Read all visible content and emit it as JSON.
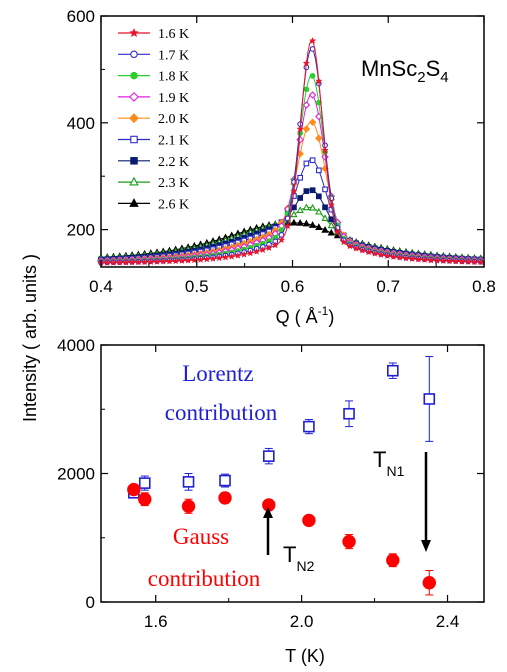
{
  "chart_data": [
    {
      "type": "line",
      "title": "MnSc2S4",
      "title_main": "MnSc",
      "title_sub1": "2",
      "title_mid": "S",
      "title_sub2": "4",
      "xlabel": "Q ( Å",
      "xlabel_sup": "-1",
      "xlabel_end": ")",
      "xlim": [
        0.4,
        0.8
      ],
      "ylim": [
        130,
        600
      ],
      "xticks": [
        "0.4",
        "0.5",
        "0.6",
        "0.7",
        "0.8"
      ],
      "yticks": [
        "200",
        "400",
        "600"
      ],
      "legend_position": "top-left",
      "series": [
        {
          "name": "1.6 K",
          "peak": 555,
          "color": "#e8152b",
          "marker": "star"
        },
        {
          "name": "1.7 K",
          "peak": 540,
          "color": "#2d2dc9",
          "marker": "open-circle"
        },
        {
          "name": "1.8 K",
          "peak": 490,
          "color": "#2bcf2b",
          "marker": "filled-circle"
        },
        {
          "name": "1.9 K",
          "peak": 455,
          "color": "#e020e0",
          "marker": "open-diamond"
        },
        {
          "name": "2.0 K",
          "peak": 405,
          "color": "#ff8c1a",
          "marker": "filled-diamond"
        },
        {
          "name": "2.1 K",
          "peak": 335,
          "color": "#2d2dc9",
          "marker": "open-square"
        },
        {
          "name": "2.2  K",
          "peak": 280,
          "color": "#0a1a6e",
          "marker": "filled-square"
        },
        {
          "name": "2.3  K",
          "peak": 248,
          "color": "#1a9c1a",
          "marker": "open-triangle"
        },
        {
          "name": "2.6  K",
          "peak": 217,
          "color": "#000000",
          "marker": "filled-triangle"
        }
      ]
    },
    {
      "type": "scatter",
      "xlabel": "T (K)",
      "ylabel": "Intensity ( arb. units )",
      "xlim": [
        1.45,
        2.5
      ],
      "ylim": [
        0,
        4000
      ],
      "xticks": [
        "1.6",
        "2.0",
        "2.4"
      ],
      "yticks": [
        "0",
        "2000",
        "4000"
      ],
      "series": [
        {
          "name": "Lorentz contribution",
          "marker": "open-square",
          "color": "#1f1fd6",
          "x": [
            1.54,
            1.57,
            1.69,
            1.79,
            1.91,
            2.02,
            2.13,
            2.25,
            2.35
          ],
          "y": [
            1700,
            1850,
            1870,
            1890,
            2270,
            2730,
            2930,
            3600,
            3160
          ],
          "err": [
            80,
            110,
            130,
            100,
            120,
            110,
            200,
            120,
            660
          ]
        },
        {
          "name": "Gauss contribution",
          "marker": "filled-circle",
          "color": "#ff0000",
          "x": [
            1.54,
            1.57,
            1.69,
            1.79,
            1.91,
            2.02,
            2.13,
            2.25,
            2.35
          ],
          "y": [
            1750,
            1600,
            1490,
            1620,
            1510,
            1270,
            940,
            650,
            300
          ],
          "err": [
            60,
            100,
            110,
            80,
            60,
            60,
            110,
            100,
            190
          ]
        }
      ],
      "annotations": {
        "lorentz_line1": "Lorentz",
        "lorentz_line2": "contribution",
        "gauss_line1": "Gauss",
        "gauss_line2": "contribution",
        "tn1_main": "T",
        "tn1_sub": "N1",
        "tn2_main": "T",
        "tn2_sub": "N2"
      }
    }
  ]
}
